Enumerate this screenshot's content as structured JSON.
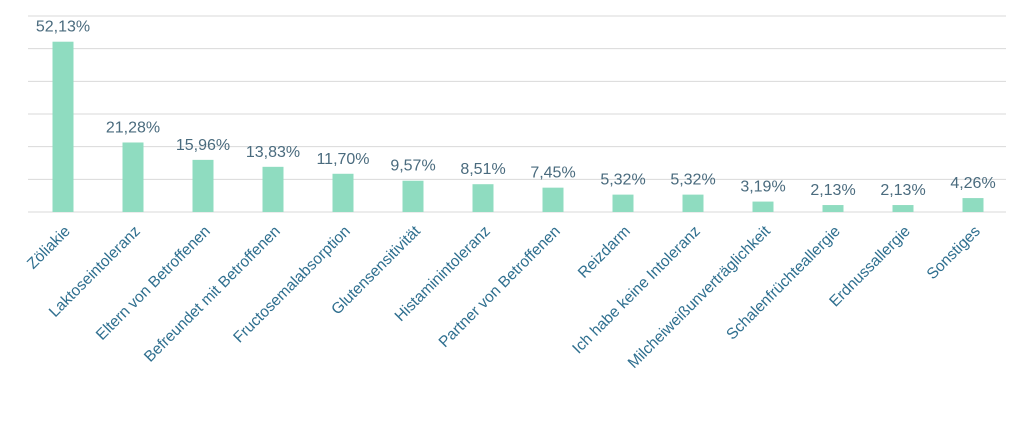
{
  "chart_data": {
    "type": "bar",
    "categories": [
      "Zöliakie",
      "Laktoseintoleranz",
      "Eltern von Betroffenen",
      "Befreundet mit Betroffenen",
      "Fructosemalabsorption",
      "Glutensensitivität",
      "Histaminintoleranz",
      "Partner von Betroffenen",
      "Reizdarm",
      "Ich habe keine Intoleranz",
      "Milcheiweißunverträglichkeit",
      "Schalenfrüchteallergie",
      "Erdnussallergie",
      "Sonstiges"
    ],
    "values": [
      52.13,
      21.28,
      15.96,
      13.83,
      11.7,
      9.57,
      8.51,
      7.45,
      5.32,
      5.32,
      3.19,
      2.13,
      2.13,
      4.26
    ],
    "value_labels": [
      "52,13%",
      "21,28%",
      "15,96%",
      "13,83%",
      "11,70%",
      "9,57%",
      "8,51%",
      "7,45%",
      "5,32%",
      "5,32%",
      "3,19%",
      "2,13%",
      "2,13%",
      "4,26%"
    ],
    "ylim": [
      0,
      60
    ],
    "grid": true,
    "colors": {
      "bar": "#8fdcc0",
      "grid": "#d9d9d9",
      "value_label": "#4a6b7e",
      "category_label": "#2f6f8f"
    }
  }
}
